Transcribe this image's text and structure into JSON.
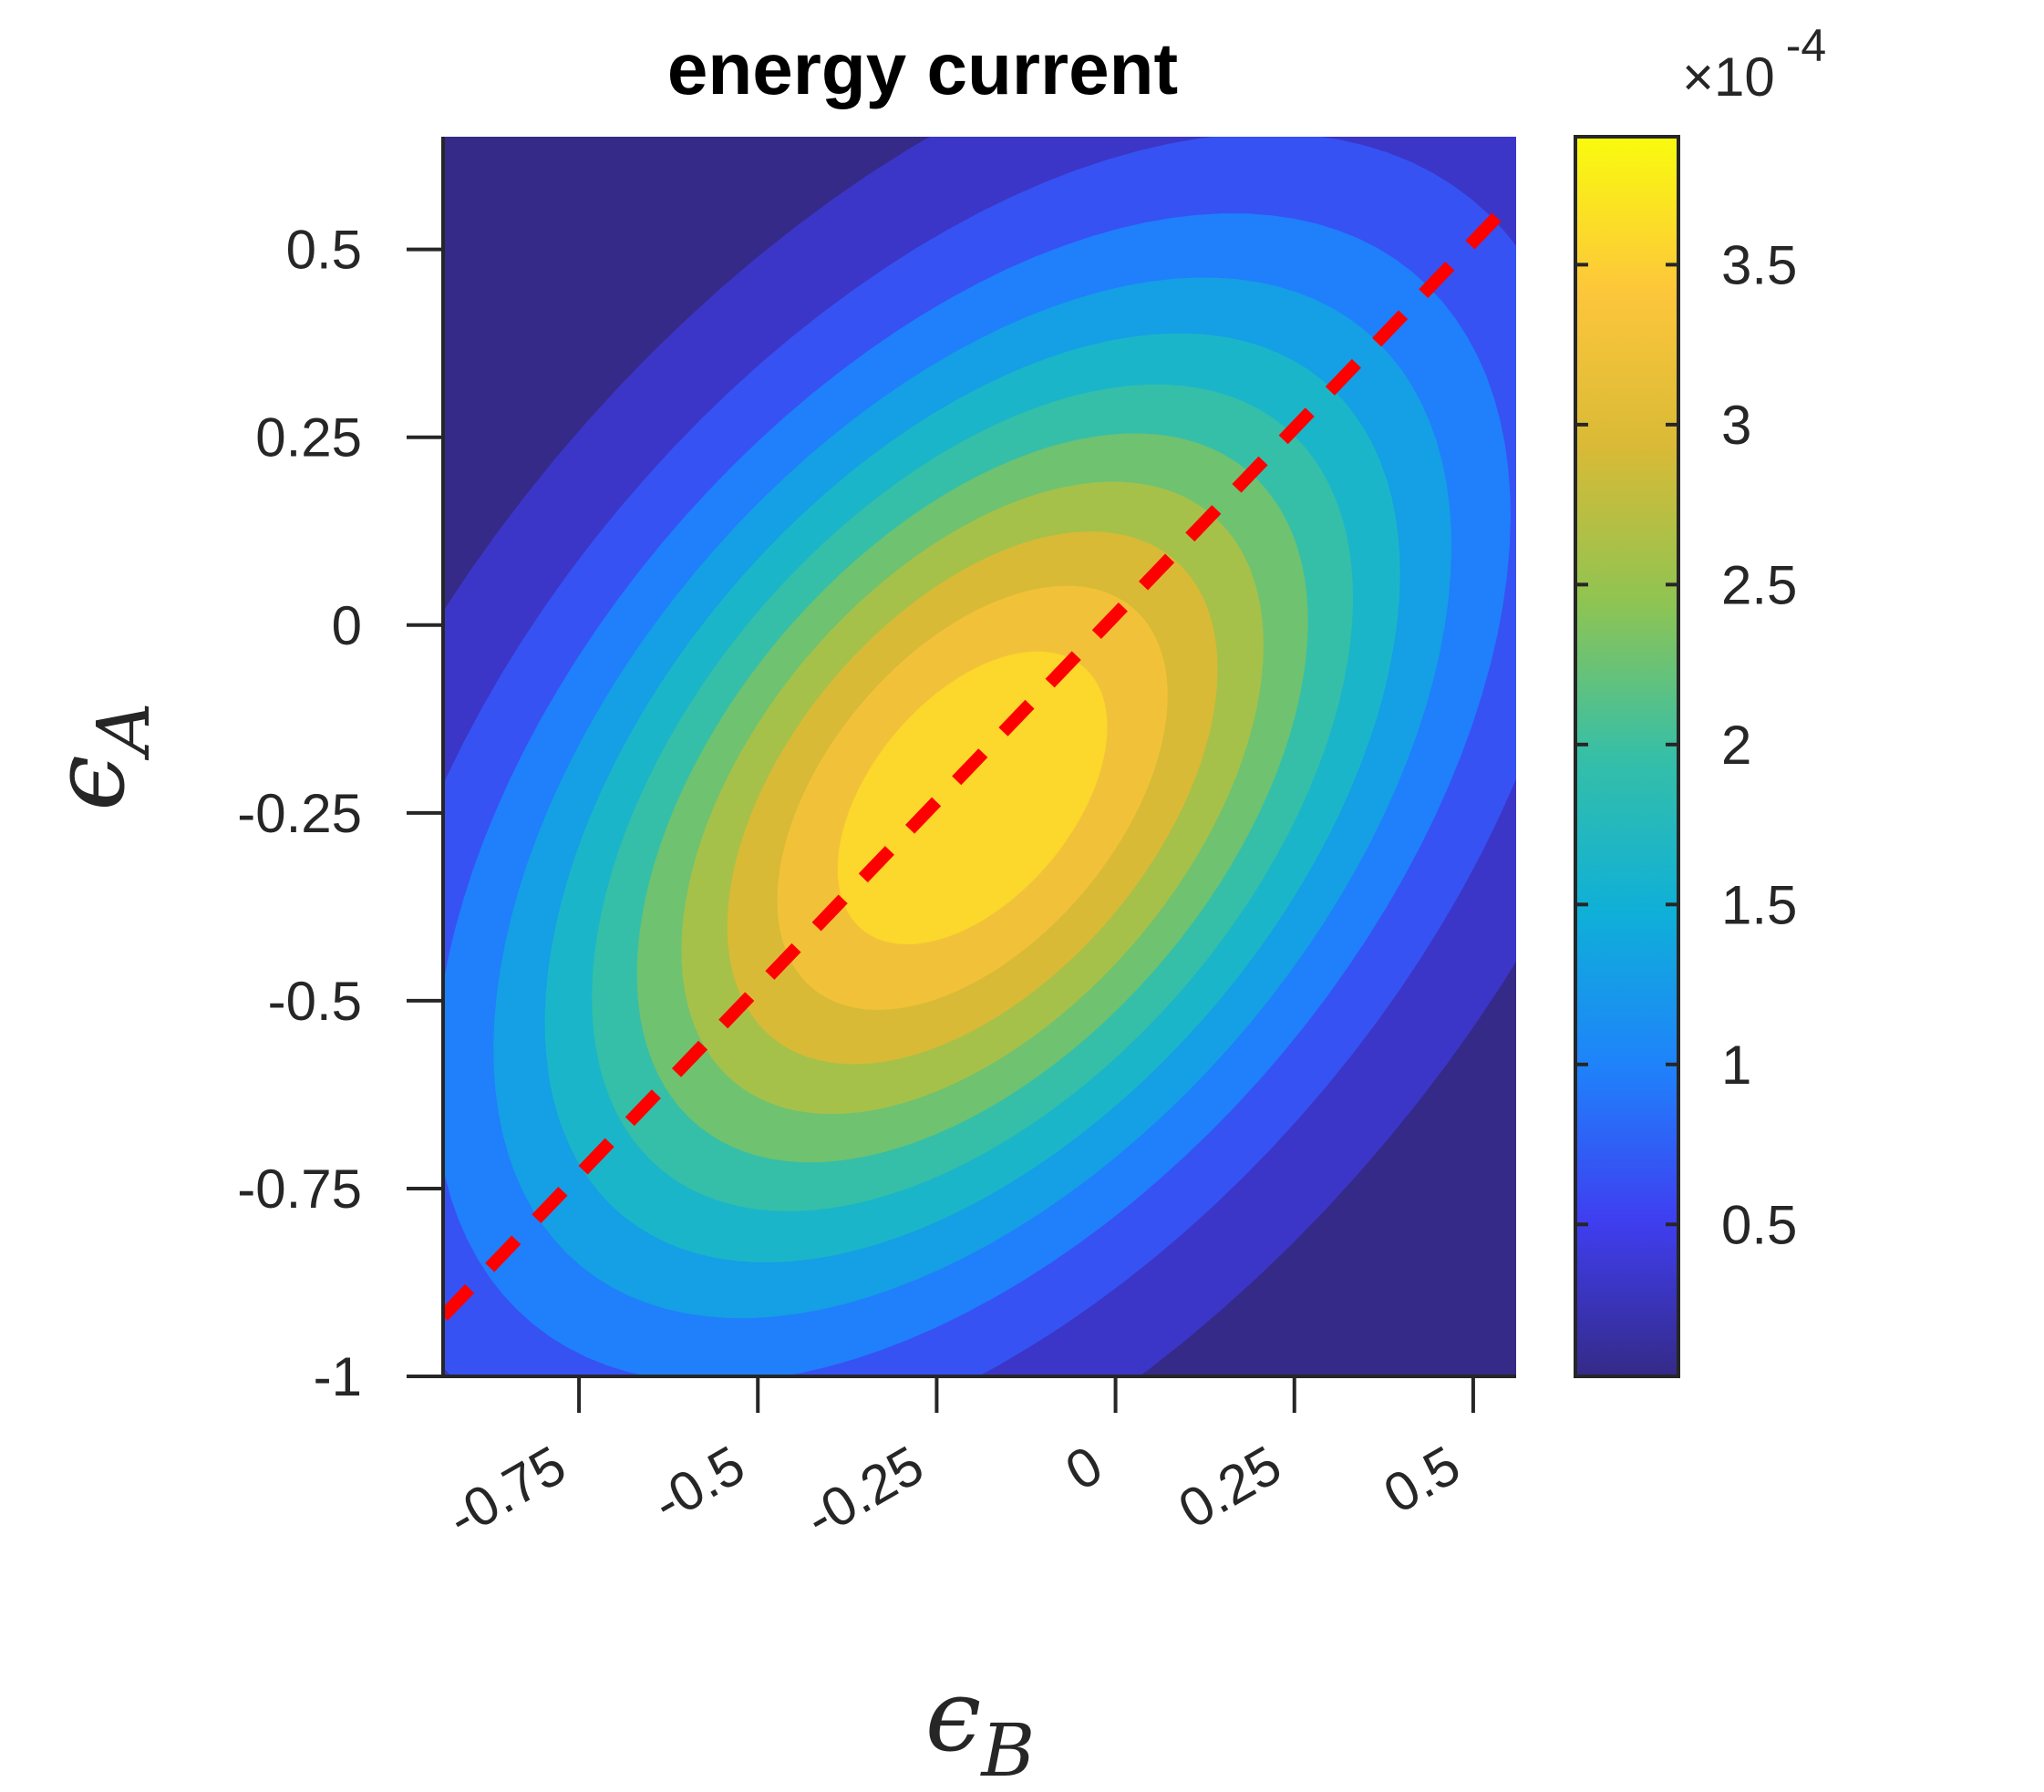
{
  "chart_data": {
    "type": "heatmap",
    "subtype": "filled-contour",
    "title": "energy current",
    "xlabel": {
      "symbol": "ϵ",
      "subscript": "B"
    },
    "ylabel": {
      "symbol": "ϵ",
      "subscript": "A"
    },
    "xlim": [
      -0.94,
      0.56
    ],
    "ylim": [
      -1,
      0.65
    ],
    "x_ticks": [
      -0.75,
      -0.5,
      -0.25,
      0,
      0.25,
      0.5
    ],
    "x_tick_labels": [
      "-0.75",
      "-0.5",
      "-0.25",
      "0",
      "0.25",
      "0.5"
    ],
    "y_ticks": [
      0.5,
      0.25,
      0,
      -0.25,
      -0.5,
      -0.75,
      -1
    ],
    "y_tick_labels": [
      "0.5",
      "0.25",
      "0",
      "-0.25",
      "-0.5",
      "-0.75",
      "-1"
    ],
    "field": {
      "peak_value": 0.00039,
      "peak_location": {
        "x": -0.2,
        "y": -0.23
      },
      "principal_axis_angle_deg": 47,
      "sigma_major": 0.56,
      "sigma_minor": 0.33
    },
    "contour_levels": [
      3.25e-05,
      6.5e-05,
      9.75e-05,
      0.00013,
      0.0001625,
      0.000195,
      0.0002275,
      0.00026,
      0.0002925,
      0.000325,
      0.0003575
    ],
    "colorbar": {
      "min": 2.5e-06,
      "max": 0.00039,
      "multiplier_base": "×10",
      "multiplier_exponent": "-4",
      "ticks": [
        0.5,
        1,
        1.5,
        2,
        2.5,
        3,
        3.5
      ],
      "tick_labels": [
        "0.5",
        "1",
        "1.5",
        "2",
        "2.5",
        "3",
        "3.5"
      ],
      "colormap": "parula",
      "colormap_stops": [
        "#352a87",
        "#3f3ef0",
        "#1f82fb",
        "#0fb0d8",
        "#36bfa7",
        "#8fc452",
        "#d9ba36",
        "#fdc63b",
        "#f9fb0e"
      ]
    },
    "reference_line": {
      "style": "dashed",
      "color": "#ff0000",
      "points": [
        {
          "x": -0.94,
          "y": -0.92
        },
        {
          "x": 0.55,
          "y": 0.56
        }
      ]
    },
    "grid": false,
    "legend": "none"
  }
}
